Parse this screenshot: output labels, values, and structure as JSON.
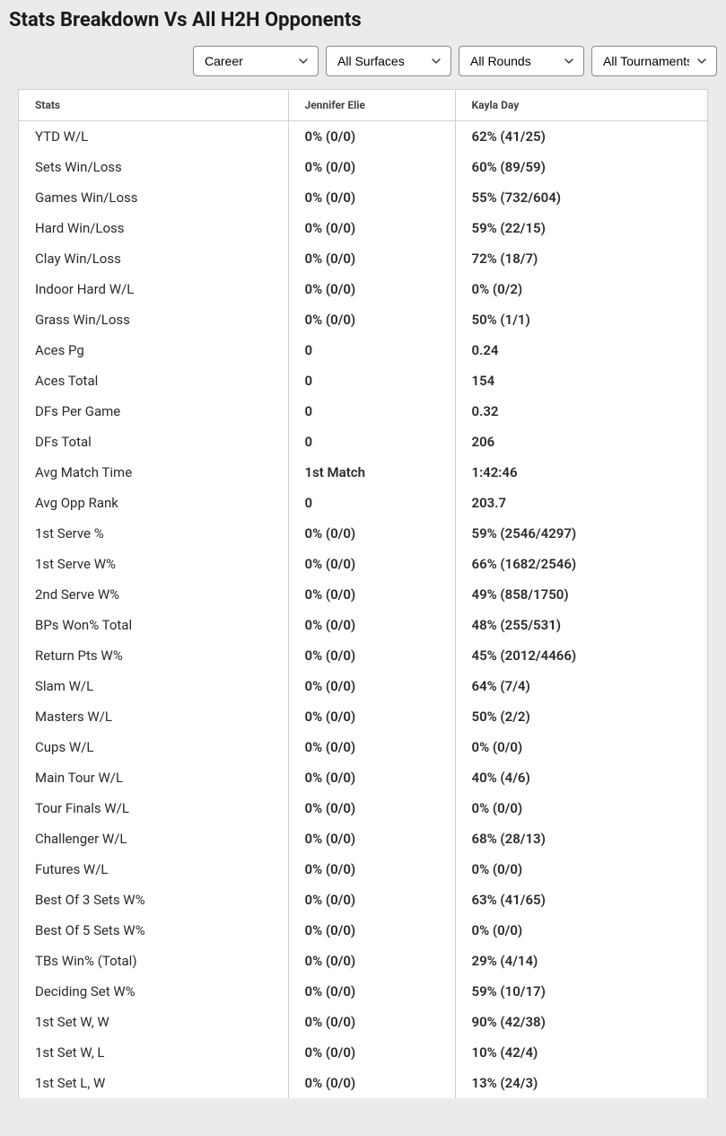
{
  "title": "Stats Breakdown Vs All H2H Opponents",
  "filters": {
    "career": "Career",
    "surface": "All Surfaces",
    "round": "All Rounds",
    "tournament": "All Tournaments"
  },
  "columns": {
    "stats": "Stats",
    "player1": "Jennifer Elie",
    "player2": "Kayla Day"
  },
  "rows": [
    {
      "stat": "YTD W/L",
      "p1": "0% (0/0)",
      "p2": "62% (41/25)"
    },
    {
      "stat": "Sets Win/Loss",
      "p1": "0% (0/0)",
      "p2": "60% (89/59)"
    },
    {
      "stat": "Games Win/Loss",
      "p1": "0% (0/0)",
      "p2": "55% (732/604)"
    },
    {
      "stat": "Hard Win/Loss",
      "p1": "0% (0/0)",
      "p2": "59% (22/15)"
    },
    {
      "stat": "Clay Win/Loss",
      "p1": "0% (0/0)",
      "p2": "72% (18/7)"
    },
    {
      "stat": "Indoor Hard W/L",
      "p1": "0% (0/0)",
      "p2": "0% (0/2)"
    },
    {
      "stat": "Grass Win/Loss",
      "p1": "0% (0/0)",
      "p2": "50% (1/1)"
    },
    {
      "stat": "Aces Pg",
      "p1": "0",
      "p2": "0.24"
    },
    {
      "stat": "Aces Total",
      "p1": "0",
      "p2": "154"
    },
    {
      "stat": "DFs Per Game",
      "p1": "0",
      "p2": "0.32"
    },
    {
      "stat": "DFs Total",
      "p1": "0",
      "p2": "206"
    },
    {
      "stat": "Avg Match Time",
      "p1": "1st Match",
      "p2": "1:42:46"
    },
    {
      "stat": "Avg Opp Rank",
      "p1": "0",
      "p2": "203.7"
    },
    {
      "stat": "1st Serve %",
      "p1": "0% (0/0)",
      "p2": "59% (2546/4297)"
    },
    {
      "stat": "1st Serve W%",
      "p1": "0% (0/0)",
      "p2": "66% (1682/2546)"
    },
    {
      "stat": "2nd Serve W%",
      "p1": "0% (0/0)",
      "p2": "49% (858/1750)"
    },
    {
      "stat": "BPs Won% Total",
      "p1": "0% (0/0)",
      "p2": "48% (255/531)"
    },
    {
      "stat": "Return Pts W%",
      "p1": "0% (0/0)",
      "p2": "45% (2012/4466)"
    },
    {
      "stat": "Slam W/L",
      "p1": "0% (0/0)",
      "p2": "64% (7/4)"
    },
    {
      "stat": "Masters W/L",
      "p1": "0% (0/0)",
      "p2": "50% (2/2)"
    },
    {
      "stat": "Cups W/L",
      "p1": "0% (0/0)",
      "p2": "0% (0/0)"
    },
    {
      "stat": "Main Tour W/L",
      "p1": "0% (0/0)",
      "p2": "40% (4/6)"
    },
    {
      "stat": "Tour Finals W/L",
      "p1": "0% (0/0)",
      "p2": "0% (0/0)"
    },
    {
      "stat": "Challenger W/L",
      "p1": "0% (0/0)",
      "p2": "68% (28/13)"
    },
    {
      "stat": "Futures W/L",
      "p1": "0% (0/0)",
      "p2": "0% (0/0)"
    },
    {
      "stat": "Best Of 3 Sets W%",
      "p1": "0% (0/0)",
      "p2": "63% (41/65)"
    },
    {
      "stat": "Best Of 5 Sets W%",
      "p1": "0% (0/0)",
      "p2": "0% (0/0)"
    },
    {
      "stat": "TBs Win% (Total)",
      "p1": "0% (0/0)",
      "p2": "29% (4/14)"
    },
    {
      "stat": "Deciding Set W%",
      "p1": "0% (0/0)",
      "p2": "59% (10/17)"
    },
    {
      "stat": "1st Set W, W",
      "p1": "0% (0/0)",
      "p2": "90% (42/38)"
    },
    {
      "stat": "1st Set W, L",
      "p1": "0% (0/0)",
      "p2": "10% (42/4)"
    },
    {
      "stat": "1st Set L, W",
      "p1": "0% (0/0)",
      "p2": "13% (24/3)"
    }
  ]
}
